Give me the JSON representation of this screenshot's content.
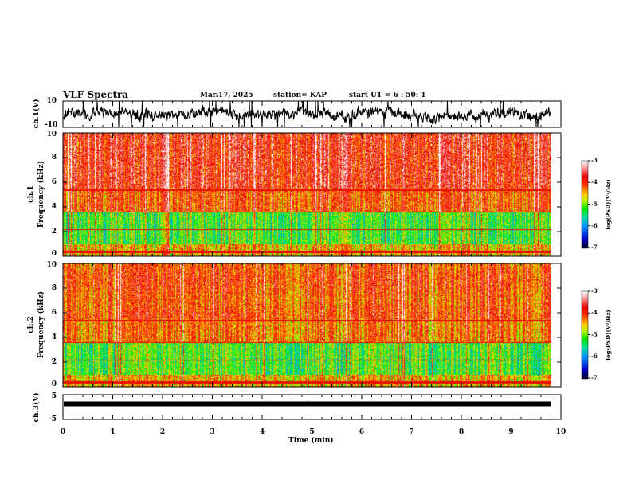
{
  "header": {
    "title": "VLF Spectra",
    "date": "Mar.17, 2025",
    "station": "station= KAP",
    "start_ut": "start  UT =  6 : 50: 1"
  },
  "chart_data": [
    {
      "type": "line",
      "name": "ch1-waveform",
      "ylabel": "ch.1(V)",
      "ylim": [
        -10,
        10
      ],
      "yticks": [
        "10",
        "-10"
      ],
      "xlim": [
        0,
        10
      ],
      "data_end_min": 9.8
    },
    {
      "type": "heatmap",
      "name": "ch1-spectrogram",
      "ylabel": "ch.1\nFrequency (kHz)",
      "ylabel_lines": [
        "ch.1",
        "Frequency (kHz)"
      ],
      "ylim": [
        0,
        10
      ],
      "yticks": [
        "10",
        "8",
        "6",
        "4",
        "2",
        "0"
      ],
      "xlim": [
        0,
        10
      ],
      "colorbar": {
        "label": "log(PSD)(V²/Hz)",
        "range": [
          -7,
          -3
        ],
        "ticks": [
          "-3",
          "-4",
          "-5",
          "-6",
          "-7"
        ]
      }
    },
    {
      "type": "heatmap",
      "name": "ch2-spectrogram",
      "ylabel_lines": [
        "ch.2",
        "Frequency (kHz)"
      ],
      "ylim": [
        0,
        10
      ],
      "yticks": [
        "10",
        "8",
        "6",
        "4",
        "2",
        "0"
      ],
      "xlim": [
        0,
        10
      ],
      "colorbar": {
        "label": "log(PSD)(V²/Hz)",
        "range": [
          -7,
          -3
        ],
        "ticks": [
          "-3",
          "-4",
          "-5",
          "-6",
          "-7"
        ]
      }
    },
    {
      "type": "line",
      "name": "ch3-waveform",
      "ylabel": "ch.3(V)",
      "ylim": [
        -5,
        5
      ],
      "yticks": [
        "5",
        "-5"
      ],
      "xlim": [
        0,
        10
      ],
      "level": 1.3,
      "data_end_min": 9.8
    }
  ],
  "xaxis": {
    "label": "Time (min)",
    "ticks": [
      "0",
      "1",
      "2",
      "3",
      "4",
      "5",
      "6",
      "7",
      "8",
      "9",
      "10"
    ]
  }
}
